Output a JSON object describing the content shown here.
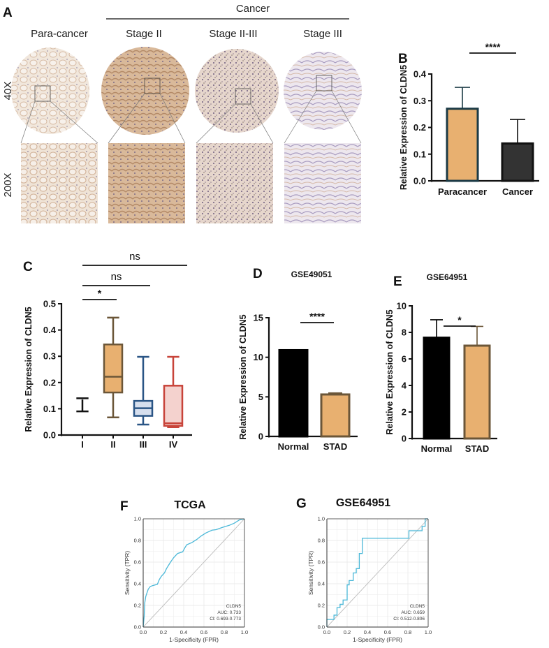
{
  "panel_a": {
    "label": "A",
    "group_title": "Cancer",
    "columns": [
      "Para-cancer",
      "Stage II",
      "Stage II-III",
      "Stage III"
    ],
    "rows": [
      "40X",
      "200X"
    ]
  },
  "panel_labels": {
    "b": "B",
    "c": "C",
    "d": "D",
    "e": "E",
    "f": "F",
    "g": "G"
  },
  "chart_data": [
    {
      "id": "B",
      "type": "bar",
      "title": "",
      "categories": [
        "Paracancer",
        "Cancer"
      ],
      "values": [
        0.27,
        0.14
      ],
      "error_upper": [
        0.35,
        0.23
      ],
      "ylabel": "Relative Expression of CLDN5",
      "ylim": [
        0,
        0.4
      ],
      "yticks": [
        "0.0",
        "0.1",
        "0.2",
        "0.3",
        "0.4"
      ],
      "fill_colors": [
        "#E8B070",
        "#333333"
      ],
      "edge_colors": [
        "#1B3A45",
        "#111111"
      ],
      "significance": [
        {
          "from": 0,
          "to": 1,
          "label": "****"
        }
      ]
    },
    {
      "id": "C",
      "type": "box",
      "title": "",
      "categories": [
        "I",
        "II",
        "III",
        "IV"
      ],
      "boxes": [
        {
          "min": 0.09,
          "q1": 0.135,
          "median": 0.137,
          "q3": 0.14,
          "max": 0.14
        },
        {
          "min": 0.067,
          "q1": 0.162,
          "median": 0.222,
          "q3": 0.345,
          "max": 0.447
        },
        {
          "min": 0.04,
          "q1": 0.073,
          "median": 0.102,
          "q3": 0.13,
          "max": 0.298
        },
        {
          "min": 0.03,
          "q1": 0.035,
          "median": 0.045,
          "q3": 0.188,
          "max": 0.298
        }
      ],
      "ylabel": "Relative Expression of CLDN5",
      "ylim": [
        0,
        0.5
      ],
      "yticks": [
        "0.0",
        "0.1",
        "0.2",
        "0.3",
        "0.4",
        "0.5"
      ],
      "fill_colors": [
        "#FFFFFF",
        "#E8B070",
        "#D6DFEE",
        "#F4D2CE"
      ],
      "edge_colors": [
        "#111111",
        "#6B5638",
        "#2A5585",
        "#C8443A"
      ],
      "significance": [
        {
          "from": 0,
          "to": 1,
          "label": "*"
        },
        {
          "from": 0,
          "to": 2,
          "label": "ns"
        },
        {
          "from": 0,
          "to": 3,
          "label": "ns"
        }
      ]
    },
    {
      "id": "D",
      "type": "bar",
      "title": "GSE49051",
      "categories": [
        "Normal",
        "STAD"
      ],
      "values": [
        10.9,
        5.3
      ],
      "error_upper": [
        10.95,
        5.5
      ],
      "ylabel": "Relative Expression of CLDN5",
      "ylim": [
        0,
        15
      ],
      "yticks": [
        "0",
        "5",
        "10",
        "15"
      ],
      "fill_colors": [
        "#000000",
        "#E8B070"
      ],
      "edge_colors": [
        "#000000",
        "#6B5638"
      ],
      "significance": [
        {
          "from": 0,
          "to": 1,
          "label": "****"
        }
      ]
    },
    {
      "id": "E",
      "type": "bar",
      "title": "GSE64951",
      "categories": [
        "Normal",
        "STAD"
      ],
      "values": [
        7.6,
        7.0
      ],
      "error_upper": [
        8.95,
        8.45
      ],
      "ylabel": "Relative Expression of CLDN5",
      "ylim": [
        0,
        10
      ],
      "yticks": [
        "0",
        "2",
        "4",
        "6",
        "8",
        "10"
      ],
      "fill_colors": [
        "#000000",
        "#E8B070"
      ],
      "edge_colors": [
        "#000000",
        "#6B5638"
      ],
      "significance": [
        {
          "from": 0,
          "to": 1,
          "label": "*"
        }
      ]
    },
    {
      "id": "F",
      "type": "line",
      "title": "TCGA",
      "xlabel": "1-Specificity (FPR)",
      "ylabel": "Sensitivity (TPR)",
      "xlim": [
        0,
        1
      ],
      "ylim": [
        0,
        1
      ],
      "ticks": [
        "0.0",
        "0.2",
        "0.4",
        "0.6",
        "0.8",
        "1.0"
      ],
      "grid": true,
      "line_color": "#4BB8D8",
      "legend": [
        "CLDN5",
        "AUC: 0.733",
        "CI: 0.693-0.773"
      ],
      "legend_position": "bottom-right",
      "points": [
        [
          0,
          0
        ],
        [
          0.01,
          0.1
        ],
        [
          0.015,
          0.22
        ],
        [
          0.025,
          0.28
        ],
        [
          0.035,
          0.31
        ],
        [
          0.05,
          0.35
        ],
        [
          0.07,
          0.375
        ],
        [
          0.1,
          0.385
        ],
        [
          0.14,
          0.395
        ],
        [
          0.16,
          0.44
        ],
        [
          0.18,
          0.47
        ],
        [
          0.21,
          0.5
        ],
        [
          0.23,
          0.54
        ],
        [
          0.25,
          0.57
        ],
        [
          0.27,
          0.6
        ],
        [
          0.3,
          0.64
        ],
        [
          0.34,
          0.68
        ],
        [
          0.39,
          0.695
        ],
        [
          0.41,
          0.73
        ],
        [
          0.43,
          0.76
        ],
        [
          0.48,
          0.78
        ],
        [
          0.53,
          0.81
        ],
        [
          0.57,
          0.84
        ],
        [
          0.62,
          0.87
        ],
        [
          0.68,
          0.895
        ],
        [
          0.72,
          0.9
        ],
        [
          0.78,
          0.92
        ],
        [
          0.85,
          0.94
        ],
        [
          0.9,
          0.96
        ],
        [
          0.95,
          0.99
        ],
        [
          1,
          1
        ]
      ]
    },
    {
      "id": "G",
      "type": "line",
      "title": "GSE64951",
      "xlabel": "1-Specificity (FPR)",
      "ylabel": "Sensitivity (TPR)",
      "xlim": [
        0,
        1
      ],
      "ylim": [
        0,
        1
      ],
      "ticks": [
        "0.0",
        "0.2",
        "0.4",
        "0.6",
        "0.8",
        "1.0"
      ],
      "grid": true,
      "line_color": "#4BB8D8",
      "legend": [
        "CLDN5",
        "AUC: 0.659",
        "CI: 0.512-0.806"
      ],
      "legend_position": "bottom-right",
      "points": [
        [
          0,
          0
        ],
        [
          0,
          0.07
        ],
        [
          0.07,
          0.07
        ],
        [
          0.07,
          0.11
        ],
        [
          0.1,
          0.11
        ],
        [
          0.1,
          0.18
        ],
        [
          0.13,
          0.18
        ],
        [
          0.13,
          0.21
        ],
        [
          0.16,
          0.21
        ],
        [
          0.16,
          0.25
        ],
        [
          0.2,
          0.25
        ],
        [
          0.2,
          0.39
        ],
        [
          0.22,
          0.39
        ],
        [
          0.22,
          0.43
        ],
        [
          0.26,
          0.43
        ],
        [
          0.26,
          0.5
        ],
        [
          0.29,
          0.5
        ],
        [
          0.29,
          0.54
        ],
        [
          0.32,
          0.54
        ],
        [
          0.32,
          0.68
        ],
        [
          0.35,
          0.68
        ],
        [
          0.35,
          0.82
        ],
        [
          0.81,
          0.82
        ],
        [
          0.81,
          0.89
        ],
        [
          0.94,
          0.89
        ],
        [
          0.94,
          0.93
        ],
        [
          0.97,
          0.93
        ],
        [
          0.97,
          1
        ],
        [
          1,
          1
        ]
      ]
    }
  ]
}
